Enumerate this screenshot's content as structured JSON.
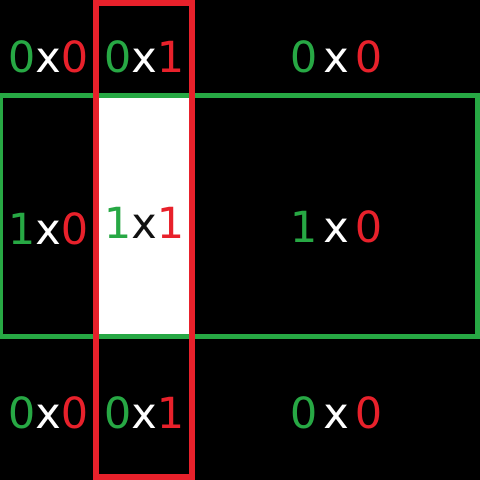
{
  "colors": {
    "background": "#000000",
    "green": "#27A844",
    "red": "#E8212B",
    "white": "#FFFFFF",
    "fill_text_x": "#111111"
  },
  "cells": {
    "r0c0": {
      "a": "0",
      "op": "x",
      "b": "0"
    },
    "r0c1": {
      "a": "0",
      "op": "x",
      "b": "1"
    },
    "r0c2": {
      "a": "0",
      "op": "x",
      "b": "0"
    },
    "r1c0": {
      "a": "1",
      "op": "x",
      "b": "0"
    },
    "r1c1": {
      "a": "1",
      "op": "x",
      "b": "1"
    },
    "r1c2": {
      "a": "1",
      "op": "x",
      "b": "0"
    },
    "r2c0": {
      "a": "0",
      "op": "x",
      "b": "0"
    },
    "r2c1": {
      "a": "0",
      "op": "x",
      "b": "1"
    },
    "r2c2": {
      "a": "0",
      "op": "x",
      "b": "0"
    }
  }
}
